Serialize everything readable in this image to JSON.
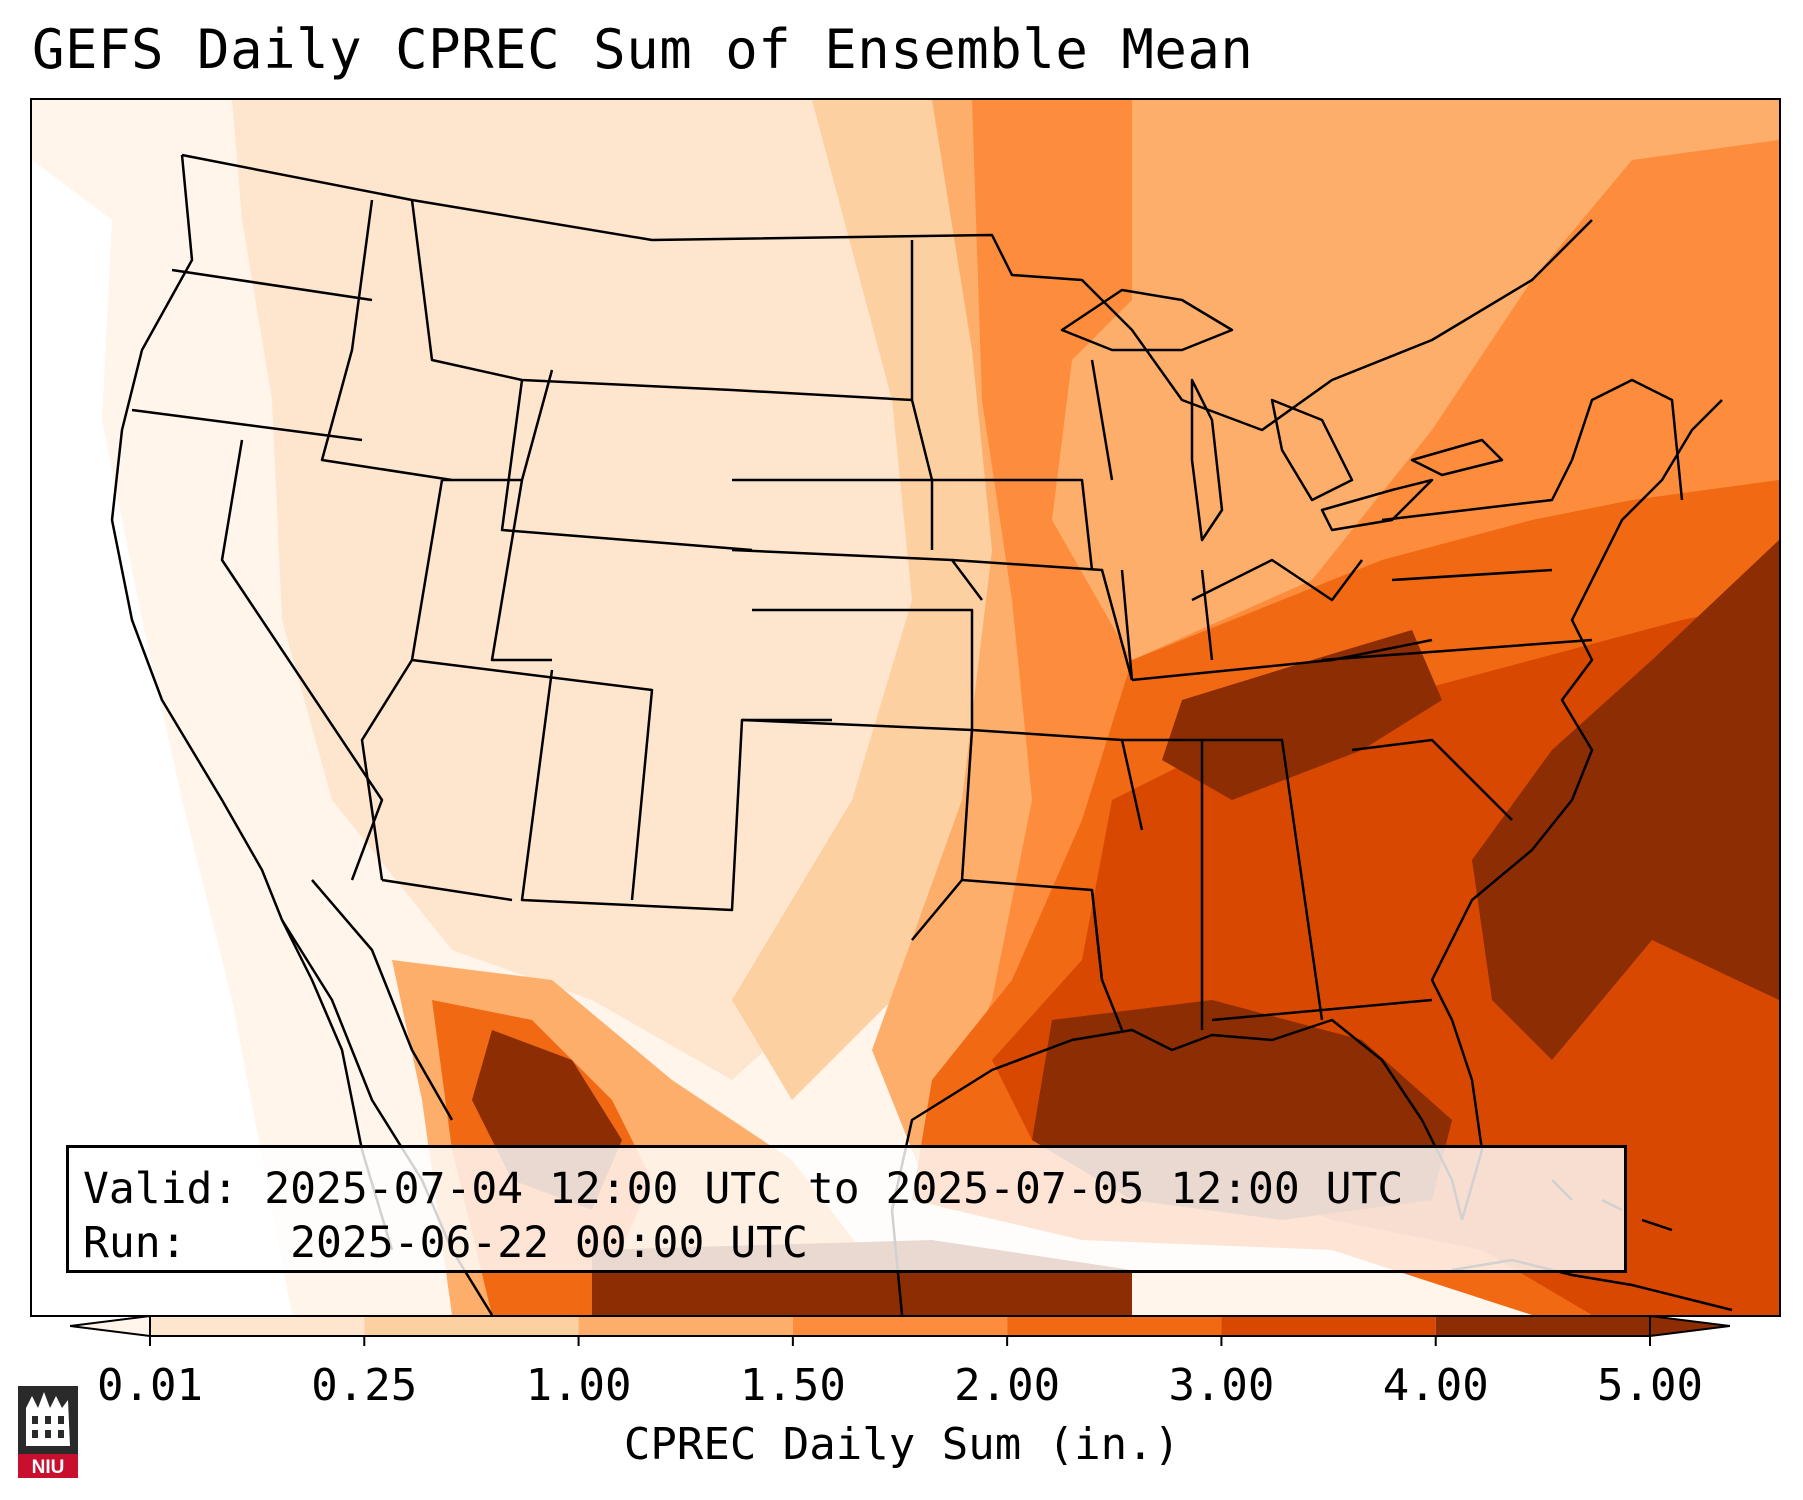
{
  "title": "GEFS Daily CPREC Sum of Ensemble Mean",
  "info": {
    "valid_label": "Valid:",
    "valid_value": "2025-07-04 12:00 UTC to 2025-07-05 12:00 UTC",
    "run_label": "Run:",
    "run_value": "2025-06-22 00:00 UTC"
  },
  "colorbar": {
    "label": "CPREC Daily Sum (in.)",
    "ticks": [
      "0.01",
      "0.25",
      "1.00",
      "1.50",
      "2.00",
      "3.00",
      "4.00",
      "5.00"
    ],
    "colors": [
      "#fff5eb",
      "#fee6ce",
      "#fdd0a2",
      "#fdae6b",
      "#fd8d3c",
      "#f16913",
      "#d94801",
      "#8c2d04"
    ],
    "extend": "both"
  },
  "logo": {
    "text": "NIU"
  },
  "map": {
    "region": "Contiguous United States",
    "palette": {
      "trace": "#fff5eb",
      "light": "#fee6ce",
      "low": "#fdd0a2",
      "mid": "#fdae6b",
      "high": "#fd8d3c",
      "higher": "#f16913",
      "veryhigh": "#d94801",
      "max": "#8c2d04",
      "boundary": "#000000"
    }
  }
}
